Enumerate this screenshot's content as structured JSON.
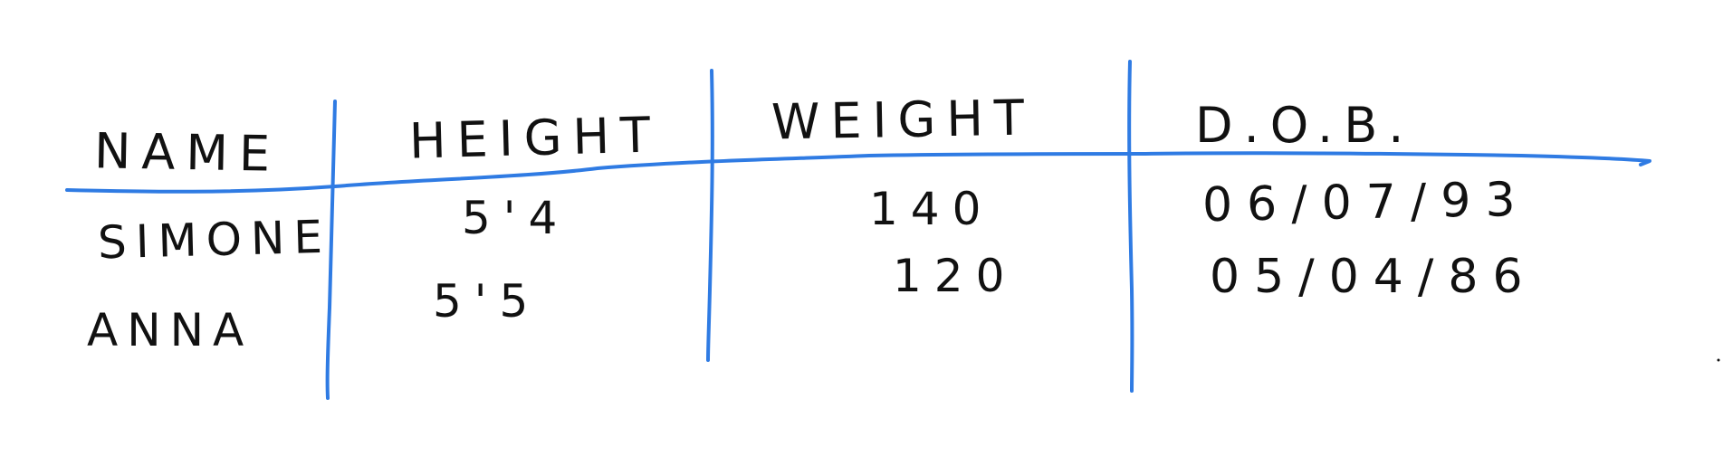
{
  "ink_color": "#111111",
  "line_color": "#2f7be3",
  "table": {
    "headers": {
      "name": "NAME",
      "height": "HEIGHT",
      "weight": "WEIGHT",
      "dob": "D.O.B."
    },
    "rows": [
      {
        "name": "SIMONE",
        "height": "5'4",
        "weight": "140",
        "dob": "06/07/93"
      },
      {
        "name": "ANNA",
        "height": "5'5",
        "weight": "120",
        "dob": "05/04/86"
      }
    ]
  }
}
